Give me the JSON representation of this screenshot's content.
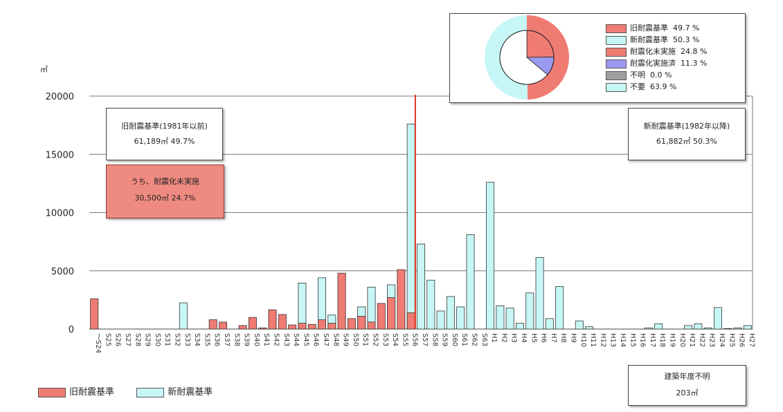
{
  "chart_data": {
    "type": "bar",
    "unit": "㎡",
    "ylim": [
      0,
      20000
    ],
    "yticks": [
      0,
      5000,
      10000,
      15000,
      20000
    ],
    "categories": [
      "～S24",
      "S25",
      "S26",
      "S27",
      "S28",
      "S29",
      "S30",
      "S31",
      "S32",
      "S33",
      "S34",
      "S35",
      "S36",
      "S37",
      "S38",
      "S39",
      "S40",
      "S41",
      "S42",
      "S43",
      "S44",
      "S45",
      "S46",
      "S47",
      "S48",
      "S49",
      "S50",
      "S51",
      "S52",
      "S53",
      "S54",
      "S55",
      "S56",
      "S57",
      "S58",
      "S59",
      "S60",
      "S61",
      "S62",
      "S63",
      "H1",
      "H2",
      "H3",
      "H4",
      "H5",
      "H6",
      "H7",
      "H8",
      "H9",
      "H10",
      "H11",
      "H12",
      "H13",
      "H14",
      "H15",
      "H16",
      "H17",
      "H18",
      "H19",
      "H20",
      "H21",
      "H22",
      "H23",
      "H24",
      "H25",
      "H26",
      "H27"
    ],
    "series": [
      {
        "name": "旧耐震基準",
        "color": "#ef7b73",
        "values": [
          2600,
          0,
          0,
          0,
          0,
          0,
          0,
          0,
          0,
          0,
          0,
          0,
          800,
          600,
          0,
          300,
          1000,
          100,
          1650,
          1250,
          350,
          500,
          400,
          800,
          500,
          4800,
          900,
          1100,
          600,
          2200,
          2700,
          5100,
          1400,
          0,
          0,
          0,
          0,
          0,
          0,
          0,
          0,
          0,
          0,
          0,
          0,
          0,
          0,
          0,
          0,
          0,
          0,
          0,
          0,
          0,
          0,
          0,
          0,
          0,
          0,
          0,
          0,
          0,
          0,
          0,
          0,
          0,
          0
        ]
      },
      {
        "name": "新耐震基準",
        "color": "#c6f6f6",
        "values": [
          0,
          0,
          0,
          0,
          0,
          0,
          0,
          0,
          0,
          2250,
          0,
          0,
          0,
          0,
          0,
          0,
          0,
          0,
          0,
          0,
          0,
          3950,
          0,
          4400,
          1200,
          0,
          0,
          1900,
          3600,
          0,
          3800,
          0,
          17600,
          7300,
          4200,
          1550,
          2800,
          1900,
          8100,
          0,
          12600,
          2000,
          1800,
          500,
          3100,
          6150,
          900,
          3650,
          0,
          700,
          200,
          0,
          0,
          0,
          0,
          0,
          100,
          450,
          0,
          0,
          300,
          450,
          100,
          1850,
          50,
          100,
          300
        ]
      }
    ],
    "divider_label": "S57"
  },
  "boxes": {
    "old_title": "旧耐震基準(1981年以前)",
    "old_value": "61,189㎡ 49.7%",
    "retro_title": "うち、耐震化未実施",
    "retro_value": "30,500㎡  24.7%",
    "new_title": "新耐震基準(1982年以降)",
    "new_value": "61,882㎡ 50.3%",
    "unknown_title": "建築年度不明",
    "unknown_value": "203㎡"
  },
  "pie_legend": [
    {
      "label": "旧耐震基準",
      "pct": "49.7 %",
      "color": "#ef7b73"
    },
    {
      "label": "新耐震基準",
      "pct": "50.3 %",
      "color": "#c6f6f6"
    },
    {
      "label": "耐震化未実施",
      "pct": "24.8 %",
      "color": "#ef7b73"
    },
    {
      "label": "耐震化実施済",
      "pct": "11.3 %",
      "color": "#9a9af0"
    },
    {
      "label": "不明",
      "pct": "0.0 %",
      "color": "#a0a0a0"
    },
    {
      "label": "不要",
      "pct": "63.9 %",
      "color": "#c6f6f6"
    }
  ],
  "pie": {
    "outer": [
      {
        "name": "旧耐震基準",
        "value": 49.7,
        "color": "#ef7b73"
      },
      {
        "name": "新耐震基準",
        "value": 50.3,
        "color": "#c6f6f6"
      }
    ],
    "inner": [
      {
        "name": "耐震化未実施",
        "value": 24.8,
        "color": "#ef7b73"
      },
      {
        "name": "耐震化実施済",
        "value": 11.3,
        "color": "#9a9af0"
      },
      {
        "name": "不明",
        "value": 0.0,
        "color": "#a0a0a0"
      },
      {
        "name": "不要",
        "value": 63.9,
        "color": "#ffffff"
      }
    ]
  },
  "legend": {
    "old": "旧耐震基準",
    "new": "新耐震基準"
  }
}
